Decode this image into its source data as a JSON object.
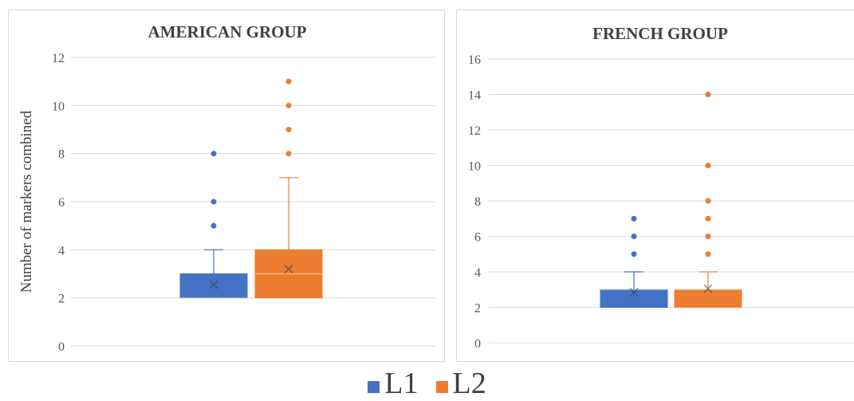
{
  "chart_data": [
    {
      "type": "box",
      "title": "AMERICAN GROUP",
      "ylabel": "Number of markers combined",
      "ylim": [
        0,
        12
      ],
      "yticks": [
        0,
        2,
        4,
        6,
        8,
        10,
        12
      ],
      "grid": true,
      "series": [
        {
          "name": "L1",
          "color": "#4472c4",
          "q1": 2,
          "median": 2,
          "q3": 3,
          "whisker_low": 2,
          "whisker_high": 4,
          "mean": 2.55,
          "outliers": [
            5,
            6,
            8
          ]
        },
        {
          "name": "L2",
          "color": "#ed7d31",
          "q1": 2,
          "median": 3,
          "q3": 4,
          "whisker_low": 2,
          "whisker_high": 7,
          "mean": 3.2,
          "outliers": [
            8,
            9,
            10,
            11
          ]
        }
      ]
    },
    {
      "type": "box",
      "title": "FRENCH GROUP",
      "ylabel": "",
      "ylim": [
        0,
        16
      ],
      "yticks": [
        0,
        2,
        4,
        6,
        8,
        10,
        12,
        14,
        16
      ],
      "grid": true,
      "series": [
        {
          "name": "L1",
          "color": "#4472c4",
          "q1": 2,
          "median": 3,
          "q3": 3,
          "whisker_low": 2,
          "whisker_high": 4,
          "mean": 2.85,
          "outliers": [
            5,
            6,
            7
          ]
        },
        {
          "name": "L2",
          "color": "#ed7d31",
          "q1": 2,
          "median": 3,
          "q3": 3,
          "whisker_low": 2,
          "whisker_high": 4,
          "mean": 3.05,
          "outliers": [
            5,
            6,
            7,
            8,
            10,
            14
          ]
        }
      ]
    }
  ],
  "legend": {
    "position": "bottom-center",
    "items": [
      {
        "label": "L1",
        "color": "#4472c4"
      },
      {
        "label": "L2",
        "color": "#ed7d31"
      }
    ]
  }
}
